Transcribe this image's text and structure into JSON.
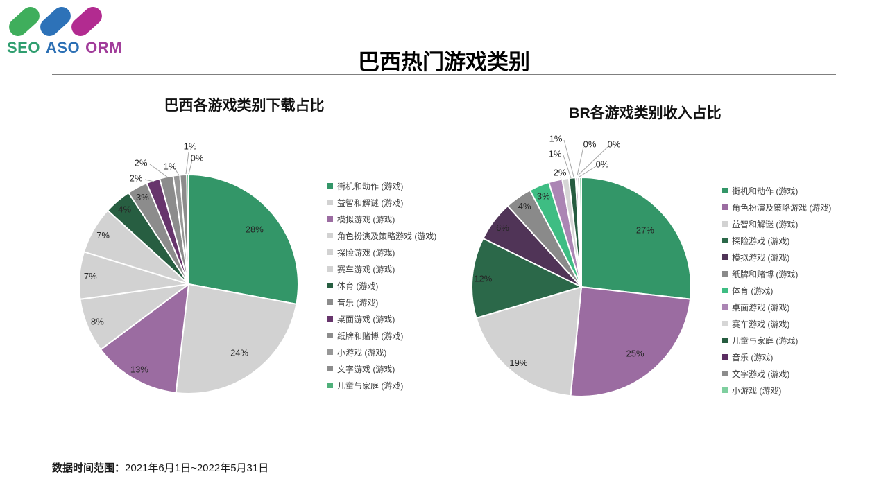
{
  "logo": {
    "bars": [
      "#3FAE5C",
      "#2D72B8",
      "#B22B90"
    ],
    "words": [
      {
        "text": "SEO",
        "color": "#2F9E6F"
      },
      {
        "text": "ASO",
        "color": "#2B6FB4"
      },
      {
        "text": "ORM",
        "color": "#A13C9A"
      }
    ]
  },
  "page": {
    "title": "巴西热门游戏类别"
  },
  "footer": {
    "label": "数据时间范围：",
    "value": "2021年6月1日~2022年5月31日"
  },
  "chart_data": [
    {
      "type": "pie",
      "title": "巴西各游戏类别下载占比",
      "unit": "%",
      "legend_position": "right",
      "start_angle_deg": 0,
      "slices": [
        {
          "label": "街机和动作 (游戏)",
          "value": 28,
          "color": "#339668",
          "label_placement": "inside"
        },
        {
          "label": "益智和解谜 (游戏)",
          "value": 24,
          "color": "#D2D2D2",
          "label_placement": "inside"
        },
        {
          "label": "模拟游戏 (游戏)",
          "value": 13,
          "color": "#9B6CA1",
          "label_placement": "inside"
        },
        {
          "label": "角色扮演及策略游戏 (游戏)",
          "value": 8,
          "color": "#D2D2D2",
          "label_placement": "inside"
        },
        {
          "label": "探险游戏 (游戏)",
          "value": 7,
          "color": "#D2D2D2",
          "label_placement": "inside"
        },
        {
          "label": "赛车游戏 (游戏)",
          "value": 7,
          "color": "#D2D2D2",
          "label_placement": "inside"
        },
        {
          "label": "体育 (游戏)",
          "value": 4,
          "color": "#275E41",
          "label_placement": "inside"
        },
        {
          "label": "音乐 (游戏)",
          "value": 3,
          "color": "#8C8C8C",
          "label_placement": "inside"
        },
        {
          "label": "桌面游戏 (游戏)",
          "value": 2,
          "color": "#67356C",
          "label_placement": "callout"
        },
        {
          "label": "纸牌和赌博 (游戏)",
          "value": 2,
          "color": "#8C8C8C",
          "label_placement": "callout"
        },
        {
          "label": "小游戏 (游戏)",
          "value": 1,
          "color": "#979797",
          "label_placement": "callout"
        },
        {
          "label": "文字游戏 (游戏)",
          "value": 1,
          "color": "#8C8C8C",
          "label_placement": "callout"
        },
        {
          "label": "儿童与家庭 (游戏)",
          "value": 0,
          "color": "#4FB07A",
          "label_placement": "callout"
        }
      ]
    },
    {
      "type": "pie",
      "title": "BR各游戏类别收入占比",
      "unit": "%",
      "legend_position": "right",
      "start_angle_deg": 0,
      "slices": [
        {
          "label": "街机和动作 (游戏)",
          "value": 27,
          "color": "#339668",
          "label_placement": "inside"
        },
        {
          "label": "角色扮演及策略游戏 (游戏)",
          "value": 25,
          "color": "#9B6CA1",
          "label_placement": "inside"
        },
        {
          "label": "益智和解谜 (游戏)",
          "value": 19,
          "color": "#D2D2D2",
          "label_placement": "inside"
        },
        {
          "label": "探险游戏 (游戏)",
          "value": 12,
          "color": "#2B6849",
          "label_placement": "inside"
        },
        {
          "label": "模拟游戏 (游戏)",
          "value": 6,
          "color": "#503457",
          "label_placement": "inside"
        },
        {
          "label": "纸牌和赌博 (游戏)",
          "value": 4,
          "color": "#8A8A8A",
          "label_placement": "inside"
        },
        {
          "label": "体育 (游戏)",
          "value": 3,
          "color": "#3EBD83",
          "label_placement": "inside"
        },
        {
          "label": "桌面游戏 (游戏)",
          "value": 2,
          "color": "#AB85B4",
          "label_placement": "callout"
        },
        {
          "label": "赛车游戏 (游戏)",
          "value": 1,
          "color": "#D6D6D6",
          "label_placement": "callout"
        },
        {
          "label": "儿童与家庭 (游戏)",
          "value": 1,
          "color": "#265C40",
          "label_placement": "callout"
        },
        {
          "label": "音乐 (游戏)",
          "value": 0,
          "color": "#5B2D62",
          "label_placement": "callout"
        },
        {
          "label": "文字游戏 (游戏)",
          "value": 0,
          "color": "#8C8C8C",
          "label_placement": "callout"
        },
        {
          "label": "小游戏 (游戏)",
          "value": 0,
          "color": "#7FCF9F",
          "label_placement": "callout"
        }
      ]
    }
  ]
}
